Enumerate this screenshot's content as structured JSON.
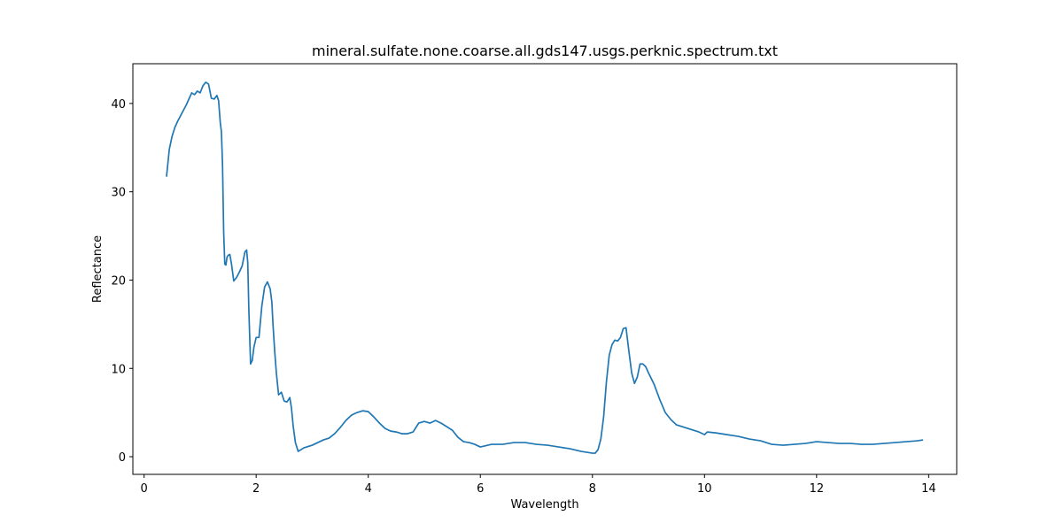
{
  "chart_data": {
    "type": "line",
    "title": "mineral.sulfate.none.coarse.all.gds147.usgs.perknic.spectrum.txt",
    "xlabel": "Wavelength",
    "ylabel": "Reflectance",
    "xlim": [
      -0.2,
      14.5
    ],
    "ylim": [
      -2,
      44.5
    ],
    "xticks": [
      0,
      2,
      4,
      6,
      8,
      10,
      12,
      14
    ],
    "yticks": [
      0,
      10,
      20,
      30,
      40
    ],
    "grid": false,
    "line_color": "#1f77b4",
    "series": [
      {
        "x": [
          0.4,
          0.45,
          0.5,
          0.55,
          0.6,
          0.65,
          0.7,
          0.75,
          0.8,
          0.85,
          0.9,
          0.95,
          1.0,
          1.05,
          1.1,
          1.15,
          1.2,
          1.25,
          1.3,
          1.33,
          1.36,
          1.38,
          1.4,
          1.42,
          1.44,
          1.46,
          1.48,
          1.5,
          1.53,
          1.56,
          1.6,
          1.65,
          1.7,
          1.75,
          1.8,
          1.83,
          1.85,
          1.87,
          1.9,
          1.93,
          1.96,
          2.0,
          2.05,
          2.1,
          2.15,
          2.2,
          2.25,
          2.28,
          2.3,
          2.33,
          2.36,
          2.4,
          2.45,
          2.5,
          2.55,
          2.6,
          2.63,
          2.66,
          2.7,
          2.75,
          2.8,
          2.85,
          2.9,
          3.0,
          3.1,
          3.2,
          3.3,
          3.4,
          3.5,
          3.6,
          3.7,
          3.8,
          3.9,
          4.0,
          4.1,
          4.2,
          4.3,
          4.4,
          4.5,
          4.6,
          4.7,
          4.8,
          4.9,
          5.0,
          5.1,
          5.2,
          5.3,
          5.4,
          5.5,
          5.6,
          5.7,
          5.8,
          5.9,
          6.0,
          6.2,
          6.4,
          6.6,
          6.8,
          7.0,
          7.2,
          7.4,
          7.6,
          7.8,
          8.0,
          8.05,
          8.1,
          8.15,
          8.2,
          8.25,
          8.3,
          8.35,
          8.4,
          8.45,
          8.5,
          8.55,
          8.6,
          8.65,
          8.7,
          8.75,
          8.8,
          8.85,
          8.9,
          8.95,
          9.0,
          9.1,
          9.2,
          9.3,
          9.4,
          9.5,
          9.7,
          9.9,
          10.0,
          10.05,
          10.2,
          10.4,
          10.6,
          10.8,
          11.0,
          11.2,
          11.4,
          11.6,
          11.8,
          12.0,
          12.2,
          12.4,
          12.6,
          12.8,
          13.0,
          13.2,
          13.4,
          13.6,
          13.8,
          13.9
        ],
        "y": [
          31.7,
          34.8,
          36.3,
          37.3,
          38.0,
          38.6,
          39.2,
          39.8,
          40.5,
          41.2,
          41.0,
          41.4,
          41.2,
          42.0,
          42.4,
          42.2,
          40.6,
          40.5,
          40.9,
          40.3,
          37.8,
          36.8,
          33.0,
          25.5,
          21.8,
          21.7,
          22.6,
          22.8,
          22.9,
          21.8,
          19.9,
          20.3,
          20.9,
          21.6,
          23.2,
          23.4,
          22.0,
          16.5,
          10.5,
          10.9,
          12.4,
          13.5,
          13.5,
          17.0,
          19.2,
          19.8,
          19.0,
          17.5,
          15.0,
          12.0,
          9.5,
          7.0,
          7.3,
          6.3,
          6.2,
          6.7,
          5.5,
          3.5,
          1.6,
          0.6,
          0.8,
          1.0,
          1.1,
          1.3,
          1.6,
          1.9,
          2.1,
          2.6,
          3.3,
          4.1,
          4.7,
          5.0,
          5.2,
          5.1,
          4.5,
          3.8,
          3.2,
          2.9,
          2.8,
          2.6,
          2.6,
          2.8,
          3.8,
          4.0,
          3.8,
          4.1,
          3.8,
          3.4,
          3.0,
          2.2,
          1.7,
          1.6,
          1.4,
          1.1,
          1.4,
          1.4,
          1.6,
          1.6,
          1.4,
          1.3,
          1.1,
          0.9,
          0.6,
          0.4,
          0.4,
          0.8,
          2.0,
          4.5,
          8.5,
          11.5,
          12.7,
          13.2,
          13.1,
          13.5,
          14.5,
          14.6,
          12.0,
          9.5,
          8.3,
          9.0,
          10.5,
          10.5,
          10.2,
          9.5,
          8.2,
          6.5,
          5.0,
          4.2,
          3.6,
          3.2,
          2.8,
          2.5,
          2.8,
          2.7,
          2.5,
          2.3,
          2.0,
          1.8,
          1.4,
          1.3,
          1.4,
          1.5,
          1.7,
          1.6,
          1.5,
          1.5,
          1.4,
          1.4,
          1.5,
          1.6,
          1.7,
          1.8,
          1.9
        ]
      }
    ]
  }
}
